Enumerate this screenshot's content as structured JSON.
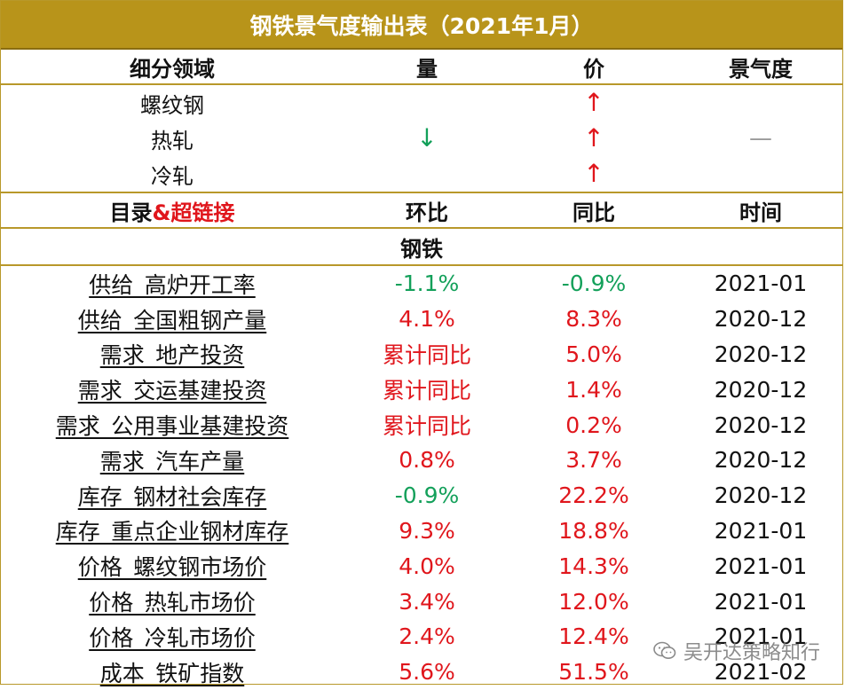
{
  "title": "钢铁景气度输出表（2021年1月）",
  "header1": {
    "col1": "细分领域",
    "col2": "量",
    "col3": "价",
    "col4": "景气度"
  },
  "sub_items": [
    {
      "name": "螺纹钢",
      "volume": "",
      "price": "↑"
    },
    {
      "name": "热轧",
      "volume": "↓",
      "price": "↑",
      "sentiment": "—"
    },
    {
      "name": "冷轧",
      "volume": "",
      "price": "↑"
    }
  ],
  "header2": {
    "col1_a": "目录",
    "col1_b": "&超链接",
    "col2": "环比",
    "col3": "同比",
    "col4": "时间"
  },
  "group_label": "钢铁",
  "rows": [
    {
      "name": "供给_高炉开工率",
      "mom": "-1.1%",
      "yoy": "-0.9%",
      "time": "2021-01"
    },
    {
      "name": "供给_全国粗钢产量",
      "mom": "4.1%",
      "yoy": "8.3%",
      "time": "2020-12"
    },
    {
      "name": "需求_地产投资",
      "mom": "累计同比",
      "yoy": "5.0%",
      "time": "2020-12"
    },
    {
      "name": "需求_交运基建投资",
      "mom": "累计同比",
      "yoy": "1.4%",
      "time": "2020-12"
    },
    {
      "name": "需求_公用事业基建投资",
      "mom": "累计同比",
      "yoy": "0.2%",
      "time": "2020-12"
    },
    {
      "name": "需求_汽车产量",
      "mom": "0.8%",
      "yoy": "3.7%",
      "time": "2020-12"
    },
    {
      "name": "库存_钢材社会库存",
      "mom": "-0.9%",
      "yoy": "22.2%",
      "time": "2020-12"
    },
    {
      "name": "库存_重点企业钢材库存",
      "mom": "9.3%",
      "yoy": "18.8%",
      "time": "2021-01"
    },
    {
      "name": "价格_螺纹钢市场价",
      "mom": "4.0%",
      "yoy": "14.3%",
      "time": "2021-01"
    },
    {
      "name": "价格_热轧市场价",
      "mom": "3.4%",
      "yoy": "12.0%",
      "time": "2021-01"
    },
    {
      "name": "价格_冷轧市场价",
      "mom": "2.4%",
      "yoy": "12.4%",
      "time": "2021-01"
    },
    {
      "name": "成本_铁矿指数",
      "mom": "5.6%",
      "yoy": "51.5%",
      "time": "2021-02"
    }
  ],
  "watermark": "吴开达策略知行",
  "colors": {
    "title_bg": "#b8941a",
    "up": "#e0161c",
    "down": "#13a05a",
    "border": "#b8982a"
  }
}
